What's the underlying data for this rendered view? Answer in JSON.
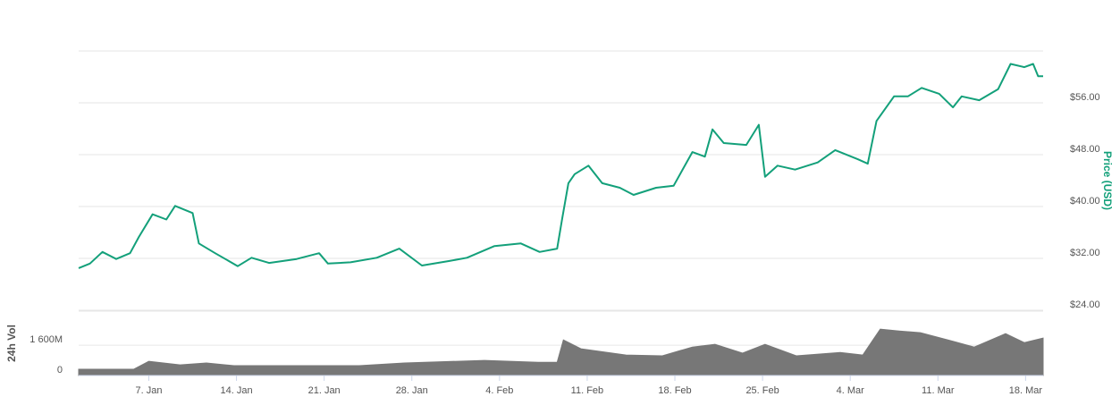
{
  "chart_data": [
    {
      "type": "line",
      "y_label": "Price (USD)",
      "color": "#13a07a",
      "grid": true,
      "x": [
        1.4,
        2.3,
        3.3,
        4.4,
        5.5,
        6.2,
        7.3,
        8.4,
        9.1,
        10.5,
        11.0,
        12.3,
        14.1,
        15.2,
        16.6,
        18.8,
        20.6,
        21.3,
        23.1,
        25.2,
        27.0,
        28.8,
        31.0,
        32.4,
        34.6,
        36.7,
        38.2,
        39.6,
        40.0,
        40.5,
        41.0,
        42.1,
        43.2,
        44.6,
        45.7,
        47.5,
        48.9,
        50.4,
        51.4,
        52.0,
        52.9,
        54.7,
        55.7,
        56.2,
        57.2,
        58.6,
        60.4,
        61.8,
        63.6,
        64.4,
        65.1,
        66.5,
        67.6,
        68.7,
        70.1,
        71.2,
        71.9,
        73.3,
        74.8,
        75.8,
        76.9,
        77.6,
        78.0,
        78.4
      ],
      "values": [
        30.5,
        31.2,
        33.0,
        31.9,
        32.8,
        35.3,
        38.8,
        38.0,
        40.1,
        39.0,
        34.3,
        32.8,
        30.8,
        32.1,
        31.3,
        31.9,
        32.8,
        31.2,
        31.4,
        32.1,
        33.5,
        30.9,
        31.6,
        32.1,
        33.9,
        34.3,
        33.0,
        33.5,
        38.1,
        43.6,
        45.0,
        46.3,
        43.6,
        42.9,
        41.8,
        42.9,
        43.2,
        48.4,
        47.7,
        51.9,
        49.8,
        49.5,
        52.6,
        44.6,
        46.3,
        45.7,
        46.8,
        48.7,
        47.3,
        46.6,
        53.2,
        57.0,
        57.0,
        58.3,
        57.4,
        55.3,
        57.0,
        56.4,
        58.1,
        62.0,
        61.5,
        62.0,
        60.1,
        60.1
      ],
      "xlim": [
        1.4,
        78.4
      ],
      "ylim": [
        24,
        64
      ],
      "yticks": [
        {
          "value": 24,
          "label": "$24.00"
        },
        {
          "value": 32,
          "label": "$32.00"
        },
        {
          "value": 40,
          "label": "$40.00"
        },
        {
          "value": 48,
          "label": "$48.00"
        },
        {
          "value": 56,
          "label": "$56.00"
        }
      ]
    },
    {
      "type": "area",
      "y_label": "24h Vol",
      "color": "#777777",
      "x": [
        1.4,
        5.8,
        7.0,
        9.5,
        11.6,
        13.8,
        23.8,
        27.4,
        33.8,
        38.1,
        39.6,
        40.1,
        41.5,
        45.1,
        48.0,
        50.4,
        52.2,
        54.4,
        56.2,
        58.7,
        62.2,
        64.0,
        65.4,
        66.9,
        68.6,
        70.8,
        72.9,
        75.4,
        76.9,
        78.4
      ],
      "values": [
        330,
        330,
        750,
        560,
        660,
        520,
        520,
        660,
        800,
        700,
        700,
        1880,
        1410,
        1080,
        1040,
        1500,
        1650,
        1180,
        1650,
        1040,
        1220,
        1080,
        2450,
        2350,
        2260,
        1880,
        1500,
        2210,
        1740,
        1980
      ],
      "xlim": [
        1.4,
        78.4
      ],
      "ylim": [
        0,
        3400
      ],
      "yticks": [
        0,
        {
          "value": 1600,
          "label": "1 600M"
        }
      ],
      "xticks": [
        {
          "value": 7,
          "label": "7. Jan"
        },
        {
          "value": 14,
          "label": "14. Jan"
        },
        {
          "value": 21,
          "label": "21. Jan"
        },
        {
          "value": 28,
          "label": "28. Jan"
        },
        {
          "value": 35,
          "label": "4. Feb"
        },
        {
          "value": 42,
          "label": "11. Feb"
        },
        {
          "value": 49,
          "label": "18. Feb"
        },
        {
          "value": 56,
          "label": "25. Feb"
        },
        {
          "value": 63,
          "label": "4. Mar"
        },
        {
          "value": 70,
          "label": "11. Mar"
        },
        {
          "value": 77,
          "label": "18. Mar"
        }
      ]
    }
  ]
}
